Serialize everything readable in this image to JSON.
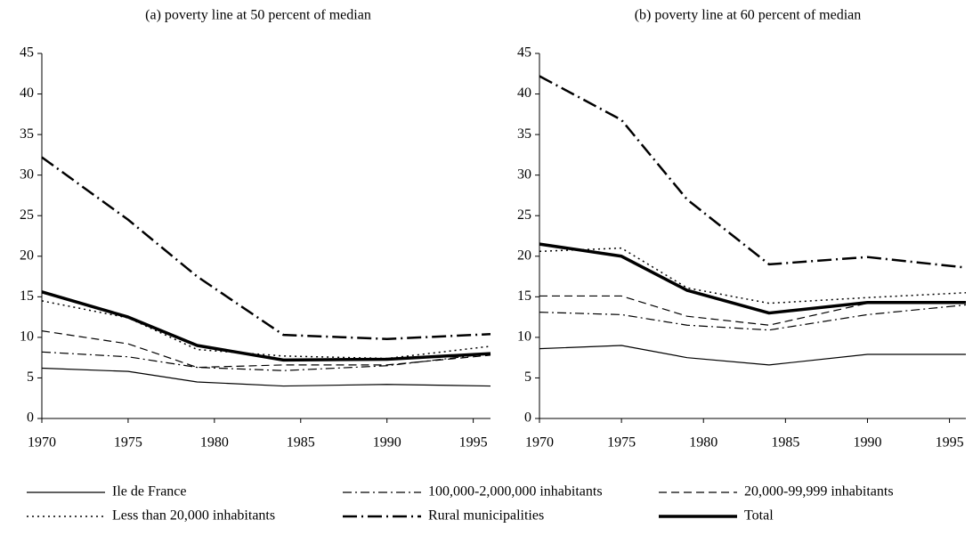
{
  "chart_data": [
    {
      "type": "line",
      "title": "(a) poverty line at 50 percent of median",
      "x": [
        1970,
        1975,
        1979,
        1984,
        1990,
        1996
      ],
      "xlim": [
        1970,
        1996
      ],
      "xticks": [
        1970,
        1975,
        1980,
        1985,
        1990,
        1995
      ],
      "ylim": [
        0,
        45
      ],
      "yticks": [
        0,
        5,
        10,
        15,
        20,
        25,
        30,
        35,
        40,
        45
      ],
      "series": [
        {
          "name": "Ile de France",
          "color": "#000000",
          "style": "solid",
          "values": [
            6.2,
            5.8,
            4.5,
            4.0,
            4.2,
            4.0
          ]
        },
        {
          "name": "100,000-2,000,000 inhabitants",
          "color": "#000000",
          "style": "dashdot",
          "values": [
            8.2,
            7.6,
            6.3,
            5.9,
            6.5,
            8.0
          ]
        },
        {
          "name": "20,000-99,999 inhabitants",
          "color": "#000000",
          "style": "dashed",
          "values": [
            10.8,
            9.2,
            6.3,
            6.6,
            6.6,
            7.8
          ]
        },
        {
          "name": "Less than 20,000 inhabitants",
          "color": "#000000",
          "style": "dotted",
          "values": [
            14.5,
            12.4,
            8.5,
            7.7,
            7.4,
            8.9
          ]
        },
        {
          "name": "Rural municipalities",
          "color": "#000000",
          "style": "longdashdot",
          "values": [
            32.2,
            24.5,
            17.5,
            10.3,
            9.8,
            10.4
          ]
        },
        {
          "name": "Total",
          "color": "#000000",
          "style": "thick",
          "values": [
            15.6,
            12.5,
            9.0,
            7.2,
            7.3,
            8.0
          ]
        }
      ]
    },
    {
      "type": "line",
      "title": "(b) poverty line at 60 percent of median",
      "x": [
        1970,
        1975,
        1979,
        1984,
        1990,
        1996
      ],
      "xlim": [
        1970,
        1996
      ],
      "xticks": [
        1970,
        1975,
        1980,
        1985,
        1990,
        1995
      ],
      "ylim": [
        0,
        45
      ],
      "yticks": [
        0,
        5,
        10,
        15,
        20,
        25,
        30,
        35,
        40,
        45
      ],
      "series": [
        {
          "values": [
            8.6,
            9.0,
            7.5,
            6.6,
            7.9,
            7.9
          ]
        },
        {
          "values": [
            13.1,
            12.8,
            11.5,
            10.9,
            12.8,
            14.0
          ]
        },
        {
          "values": [
            15.1,
            15.1,
            12.6,
            11.5,
            14.2,
            14.2
          ]
        },
        {
          "values": [
            20.6,
            21.0,
            16.1,
            14.2,
            14.9,
            15.5
          ]
        },
        {
          "values": [
            42.2,
            36.8,
            27.0,
            19.0,
            19.9,
            18.6
          ]
        },
        {
          "values": [
            21.5,
            20.0,
            15.8,
            13.0,
            14.3,
            14.3
          ]
        }
      ]
    }
  ]
}
